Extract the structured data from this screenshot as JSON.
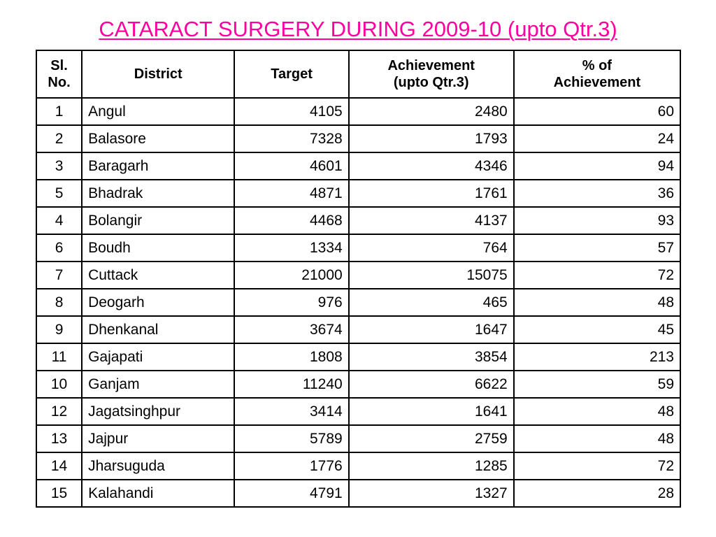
{
  "title": "CATARACT SURGERY DURING 2009-10 (upto Qtr.3)",
  "colors": {
    "title": "#ff00a0",
    "border": "#000000",
    "text": "#000000"
  },
  "table": {
    "headers": {
      "slno_line1": "Sl.",
      "slno_line2": "No.",
      "district": "District",
      "target": "Target",
      "achievement_line1": "Achievement",
      "achievement_line2": "(upto Qtr.3)",
      "pct_line1": "% of",
      "pct_line2": "Achievement"
    },
    "rows": [
      {
        "slno": "1",
        "district": "Angul",
        "target": "4105",
        "achievement": "2480",
        "pct": "60"
      },
      {
        "slno": "2",
        "district": "Balasore",
        "target": "7328",
        "achievement": "1793",
        "pct": "24"
      },
      {
        "slno": "3",
        "district": "Baragarh",
        "target": "4601",
        "achievement": "4346",
        "pct": "94"
      },
      {
        "slno": "5",
        "district": "Bhadrak",
        "target": "4871",
        "achievement": "1761",
        "pct": "36"
      },
      {
        "slno": "4",
        "district": "Bolangir",
        "target": "4468",
        "achievement": "4137",
        "pct": "93"
      },
      {
        "slno": "6",
        "district": "Boudh",
        "target": "1334",
        "achievement": "764",
        "pct": "57"
      },
      {
        "slno": "7",
        "district": "Cuttack",
        "target": "21000",
        "achievement": "15075",
        "pct": "72"
      },
      {
        "slno": "8",
        "district": "Deogarh",
        "target": "976",
        "achievement": "465",
        "pct": "48"
      },
      {
        "slno": "9",
        "district": "Dhenkanal",
        "target": "3674",
        "achievement": "1647",
        "pct": "45"
      },
      {
        "slno": "11",
        "district": "Gajapati",
        "target": "1808",
        "achievement": "3854",
        "pct": "213"
      },
      {
        "slno": "10",
        "district": "Ganjam",
        "target": "11240",
        "achievement": "6622",
        "pct": "59"
      },
      {
        "slno": "12",
        "district": "Jagatsinghpur",
        "target": "3414",
        "achievement": "1641",
        "pct": "48"
      },
      {
        "slno": "13",
        "district": "Jajpur",
        "target": "5789",
        "achievement": "2759",
        "pct": "48"
      },
      {
        "slno": "14",
        "district": "Jharsuguda",
        "target": "1776",
        "achievement": "1285",
        "pct": "72"
      },
      {
        "slno": "15",
        "district": "Kalahandi",
        "target": "4791",
        "achievement": "1327",
        "pct": "28"
      }
    ]
  }
}
